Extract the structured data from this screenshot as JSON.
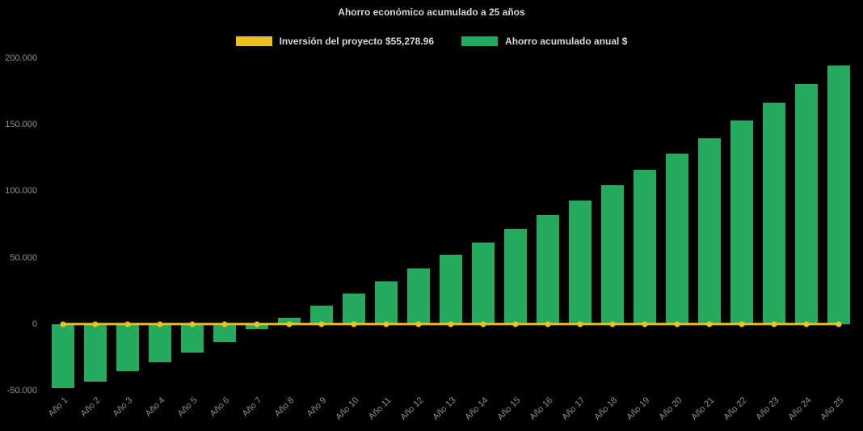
{
  "chart_data": {
    "type": "bar",
    "title": "Ahorro económico acumulado a 25 años",
    "categories": [
      "Año 1",
      "Año 2",
      "Año 3",
      "Año 4",
      "Año 5",
      "Año 6",
      "Año 7",
      "Año 8",
      "Año 9",
      "Año 10",
      "Año 11",
      "Año 12",
      "Año 13",
      "Año 14",
      "Año 15",
      "Año 16",
      "Año 17",
      "Año 18",
      "Año 19",
      "Año 20",
      "Año 21",
      "Año 22",
      "Año 23",
      "Año 24",
      "Año 25"
    ],
    "series": [
      {
        "name": "Inversión del proyecto $55,278.96",
        "type": "line",
        "color": "#edc120",
        "values": [
          0,
          0,
          0,
          0,
          0,
          0,
          0,
          0,
          0,
          0,
          0,
          0,
          0,
          0,
          0,
          0,
          0,
          0,
          0,
          0,
          0,
          0,
          0,
          0,
          0
        ]
      },
      {
        "name": "Ahorro acumulado anual $",
        "type": "bar",
        "color": "#24aa5e",
        "values": [
          -48000,
          -43500,
          -35500,
          -28500,
          -21500,
          -13500,
          -3500,
          5000,
          14000,
          23000,
          32000,
          42000,
          52000,
          61500,
          71500,
          82000,
          93000,
          104500,
          116000,
          128000,
          140000,
          153000,
          166500,
          180500,
          194500
        ]
      }
    ],
    "ylim": [
      -50000,
      200000
    ],
    "yticks": [
      {
        "value": 200000,
        "label": "200.000"
      },
      {
        "value": 150000,
        "label": "150.000"
      },
      {
        "value": 100000,
        "label": "100.000"
      },
      {
        "value": 50000,
        "label": "50.000"
      },
      {
        "value": 0,
        "label": "0"
      },
      {
        "value": -50000,
        "label": "-50.000"
      }
    ],
    "grid": false,
    "legend_position": "top",
    "colors": {
      "background": "#000000",
      "title_text": "#d8d8d8",
      "tick_text": "#8f8f8f"
    }
  }
}
